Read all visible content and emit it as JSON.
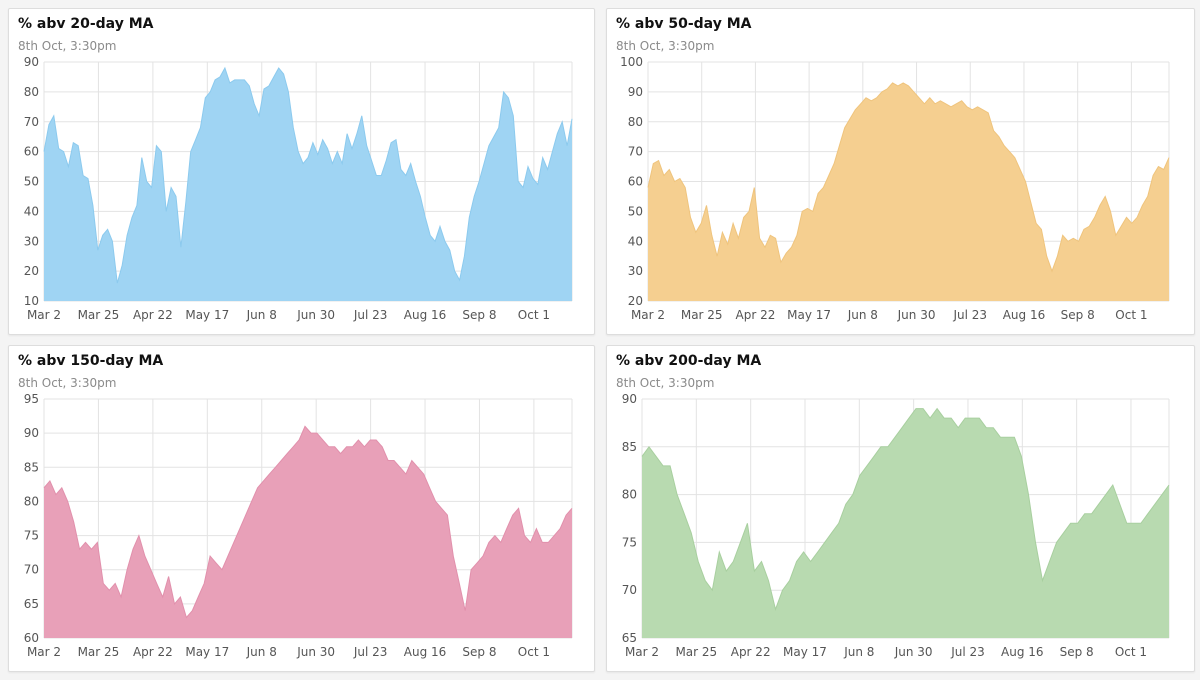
{
  "cards": [
    {
      "title": "% abv 20-day MA",
      "subtitle": "8th Oct, 3:30pm"
    },
    {
      "title": "% abv 50-day MA",
      "subtitle": "8th Oct, 3:30pm"
    },
    {
      "title": "% abv 150-day MA",
      "subtitle": "8th Oct, 3:30pm"
    },
    {
      "title": "% abv 200-day MA",
      "subtitle": "8th Oct, 3:30pm"
    }
  ],
  "chart_data": [
    {
      "type": "area",
      "title": "% abv 20-day MA",
      "subtitle": "8th Oct, 3:30pm",
      "color": "#9fd4f3",
      "stroke": "#8ccaee",
      "x_ticks": [
        "Mar 2",
        "Mar 25",
        "Apr 22",
        "May 17",
        "Jun 8",
        "Jun 30",
        "Jul 23",
        "Aug 16",
        "Sep 8",
        "Oct 1"
      ],
      "y_ticks": [
        10,
        20,
        30,
        40,
        50,
        60,
        70,
        80,
        90
      ],
      "ylim": [
        10,
        90
      ],
      "grid": true,
      "values": [
        60,
        69,
        72,
        61,
        60,
        55,
        63,
        62,
        52,
        51,
        42,
        27,
        32,
        34,
        30,
        16,
        22,
        32,
        38,
        42,
        58,
        50,
        48,
        62,
        60,
        40,
        48,
        45,
        28,
        43,
        60,
        64,
        68,
        78,
        80,
        84,
        85,
        88,
        83,
        84,
        84,
        84,
        82,
        76,
        72,
        81,
        82,
        85,
        88,
        86,
        80,
        68,
        60,
        56,
        58,
        63,
        59,
        64,
        61,
        56,
        60,
        56,
        66,
        61,
        66,
        72,
        62,
        57,
        52,
        52,
        57,
        63,
        64,
        54,
        52,
        56,
        50,
        45,
        38,
        32,
        30,
        35,
        30,
        27,
        20,
        17,
        25,
        38,
        45,
        50,
        56,
        62,
        65,
        68,
        80,
        78,
        72,
        50,
        48,
        55,
        51,
        49,
        58,
        54,
        60,
        66,
        70,
        62,
        71
      ]
    },
    {
      "type": "area",
      "title": "% abv 50-day MA",
      "subtitle": "8th Oct, 3:30pm",
      "color": "#f5cf90",
      "stroke": "#efc47d",
      "x_ticks": [
        "Mar 2",
        "Mar 25",
        "Apr 22",
        "May 17",
        "Jun 8",
        "Jun 30",
        "Jul 23",
        "Aug 16",
        "Sep 8",
        "Oct 1"
      ],
      "y_ticks": [
        20,
        30,
        40,
        50,
        60,
        70,
        80,
        90,
        100
      ],
      "ylim": [
        20,
        100
      ],
      "grid": true,
      "values": [
        58,
        66,
        67,
        62,
        64,
        60,
        61,
        58,
        48,
        43,
        46,
        52,
        42,
        35,
        43,
        39,
        46,
        41,
        48,
        50,
        58,
        41,
        38,
        42,
        41,
        33,
        36,
        38,
        42,
        50,
        51,
        50,
        56,
        58,
        62,
        66,
        72,
        78,
        81,
        84,
        86,
        88,
        87,
        88,
        90,
        91,
        93,
        92,
        93,
        92,
        90,
        88,
        86,
        88,
        86,
        87,
        86,
        85,
        86,
        87,
        85,
        84,
        85,
        84,
        83,
        77,
        75,
        72,
        70,
        68,
        64,
        60,
        53,
        46,
        44,
        35,
        30,
        35,
        42,
        40,
        41,
        40,
        44,
        45,
        48,
        52,
        55,
        50,
        42,
        45,
        48,
        46,
        48,
        52,
        55,
        62,
        65,
        64,
        68
      ]
    },
    {
      "type": "area",
      "title": "% abv 150-day MA",
      "subtitle": "8th Oct, 3:30pm",
      "color": "#e8a0b8",
      "stroke": "#e190ac",
      "x_ticks": [
        "Mar 2",
        "Mar 25",
        "Apr 22",
        "May 17",
        "Jun 8",
        "Jun 30",
        "Jul 23",
        "Aug 16",
        "Sep 8",
        "Oct 1"
      ],
      "y_ticks": [
        60,
        65,
        70,
        75,
        80,
        85,
        90,
        95
      ],
      "ylim": [
        60,
        95
      ],
      "grid": true,
      "values": [
        82,
        83,
        81,
        82,
        80,
        77,
        73,
        74,
        73,
        74,
        68,
        67,
        68,
        66,
        70,
        73,
        75,
        72,
        70,
        68,
        66,
        69,
        65,
        66,
        63,
        64,
        66,
        68,
        72,
        71,
        70,
        72,
        74,
        76,
        78,
        80,
        82,
        83,
        84,
        85,
        86,
        87,
        88,
        89,
        91,
        90,
        90,
        89,
        88,
        88,
        87,
        88,
        88,
        89,
        88,
        89,
        89,
        88,
        86,
        86,
        85,
        84,
        86,
        85,
        84,
        82,
        80,
        79,
        78,
        72,
        68,
        64,
        70,
        71,
        72,
        74,
        75,
        74,
        76,
        78,
        79,
        75,
        74,
        76,
        74,
        74,
        75,
        76,
        78,
        79
      ]
    },
    {
      "type": "area",
      "title": "% abv 200-day MA",
      "subtitle": "8th Oct, 3:30pm",
      "color": "#b8dab0",
      "stroke": "#a8cf9f",
      "x_ticks": [
        "Mar 2",
        "Mar 25",
        "Apr 22",
        "May 17",
        "Jun 8",
        "Jun 30",
        "Jul 23",
        "Aug 16",
        "Sep 8",
        "Oct 1"
      ],
      "y_ticks": [
        65,
        70,
        75,
        80,
        85,
        90
      ],
      "ylim": [
        65,
        90
      ],
      "grid": true,
      "values": [
        84,
        85,
        84,
        83,
        83,
        80,
        78,
        76,
        73,
        71,
        70,
        74,
        72,
        73,
        75,
        77,
        72,
        73,
        71,
        68,
        70,
        71,
        73,
        74,
        73,
        74,
        75,
        76,
        77,
        79,
        80,
        82,
        83,
        84,
        85,
        85,
        86,
        87,
        88,
        89,
        89,
        88,
        89,
        88,
        88,
        87,
        88,
        88,
        88,
        87,
        87,
        86,
        86,
        86,
        84,
        80,
        75,
        71,
        73,
        75,
        76,
        77,
        77,
        78,
        78,
        79,
        80,
        81,
        79,
        77,
        77,
        77,
        78,
        79,
        80,
        81
      ]
    }
  ]
}
